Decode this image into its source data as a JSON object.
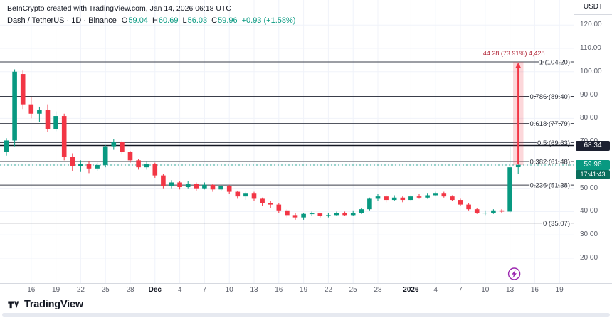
{
  "header": {
    "attribution": "BeInCrypto created with TradingView.com, Jan 14, 2026 06:18 UTC",
    "symbol": "Dash / TetherUS · 1D · Binance",
    "ohlc": {
      "o_label": "O",
      "o": "59.04",
      "h_label": "H",
      "h": "60.69",
      "l_label": "L",
      "l": "56.03",
      "c_label": "C",
      "c": "59.96",
      "change": "+0.93 (+1.58%)"
    }
  },
  "price_axis": {
    "currency": "USDT",
    "ticks": [
      {
        "value": 120,
        "label": "120.00"
      },
      {
        "value": 110,
        "label": "110.00"
      },
      {
        "value": 100,
        "label": "100.00"
      },
      {
        "value": 90,
        "label": "90.00"
      },
      {
        "value": 80,
        "label": "80.00"
      },
      {
        "value": 70,
        "label": "70.00"
      },
      {
        "value": 60,
        "label": "60.00"
      },
      {
        "value": 50,
        "label": "50.00"
      },
      {
        "value": 40,
        "label": "40.00"
      },
      {
        "value": 30,
        "label": "30.00"
      },
      {
        "value": 20,
        "label": "20.00"
      }
    ],
    "line_badge": "68.34",
    "last_price_label": "59.96",
    "countdown": "17:41:43"
  },
  "time_axis": {
    "ticks": [
      {
        "i": 3,
        "label": "16"
      },
      {
        "i": 6,
        "label": "19"
      },
      {
        "i": 9,
        "label": "22"
      },
      {
        "i": 12,
        "label": "25"
      },
      {
        "i": 15,
        "label": "28"
      },
      {
        "i": 18,
        "label": "Dec",
        "bold": true
      },
      {
        "i": 21,
        "label": "4"
      },
      {
        "i": 24,
        "label": "7"
      },
      {
        "i": 27,
        "label": "10"
      },
      {
        "i": 30,
        "label": "13"
      },
      {
        "i": 33,
        "label": "16"
      },
      {
        "i": 36,
        "label": "19"
      },
      {
        "i": 39,
        "label": "22"
      },
      {
        "i": 42,
        "label": "25"
      },
      {
        "i": 45,
        "label": "28"
      },
      {
        "i": 49,
        "label": "2026",
        "bold": true
      },
      {
        "i": 52,
        "label": "4"
      },
      {
        "i": 55,
        "label": "7"
      },
      {
        "i": 58,
        "label": "10"
      },
      {
        "i": 61,
        "label": "13"
      },
      {
        "i": 64,
        "label": "16"
      },
      {
        "i": 67,
        "label": "19"
      }
    ]
  },
  "footer": {
    "brand": "TradingView"
  },
  "chart_data": {
    "type": "candlestick",
    "title": "Dash / TetherUS · 1D · Binance",
    "ylabel": "Price (USDT)",
    "y_axis_ticks": [
      120,
      110,
      100,
      90,
      80,
      70,
      60,
      50,
      40,
      30,
      20
    ],
    "candles": [
      [
        "Nov 13",
        65.5,
        71.5,
        64.0,
        70.5
      ],
      [
        "Nov 14",
        70.5,
        101.0,
        68.0,
        100.0
      ],
      [
        "Nov 15",
        99.0,
        100.5,
        84.0,
        86.0
      ],
      [
        "Nov 16",
        86.0,
        89.0,
        80.0,
        82.0
      ],
      [
        "Nov 17",
        82.0,
        85.0,
        78.5,
        83.5
      ],
      [
        "Nov 18",
        83.5,
        86.0,
        74.0,
        75.5
      ],
      [
        "Nov 19",
        75.5,
        83.0,
        74.5,
        81.0
      ],
      [
        "Nov 20",
        81.0,
        82.0,
        62.0,
        63.5
      ],
      [
        "Nov 21",
        63.5,
        65.0,
        57.5,
        59.5
      ],
      [
        "Nov 22",
        59.5,
        62.0,
        57.0,
        60.5
      ],
      [
        "Nov 23",
        60.5,
        61.5,
        56.5,
        58.5
      ],
      [
        "Nov 24",
        58.5,
        61.0,
        57.5,
        60.0
      ],
      [
        "Nov 25",
        60.0,
        68.5,
        59.0,
        68.0
      ],
      [
        "Nov 26",
        68.0,
        71.0,
        66.5,
        70.0
      ],
      [
        "Nov 27",
        70.0,
        70.5,
        64.5,
        65.5
      ],
      [
        "Nov 28",
        65.5,
        66.0,
        61.0,
        62.0
      ],
      [
        "Nov 29",
        62.0,
        62.5,
        58.0,
        59.0
      ],
      [
        "Nov 30",
        59.0,
        61.5,
        58.0,
        60.5
      ],
      [
        "Dec 1",
        60.5,
        61.0,
        54.5,
        55.5
      ],
      [
        "Dec 2",
        55.5,
        56.0,
        50.0,
        51.0
      ],
      [
        "Dec 3",
        51.0,
        53.5,
        50.0,
        52.5
      ],
      [
        "Dec 4",
        52.5,
        53.0,
        49.5,
        50.5
      ],
      [
        "Dec 5",
        50.5,
        53.0,
        50.0,
        52.0
      ],
      [
        "Dec 6",
        52.0,
        52.5,
        49.0,
        50.0
      ],
      [
        "Dec 7",
        50.0,
        52.5,
        49.5,
        51.5
      ],
      [
        "Dec 8",
        51.5,
        52.0,
        48.5,
        49.5
      ],
      [
        "Dec 9",
        49.5,
        51.5,
        49.0,
        51.0
      ],
      [
        "Dec 10",
        51.0,
        51.5,
        47.5,
        48.5
      ],
      [
        "Dec 11",
        48.5,
        49.0,
        45.5,
        46.5
      ],
      [
        "Dec 12",
        46.5,
        48.5,
        45.0,
        48.0
      ],
      [
        "Dec 13",
        48.0,
        48.5,
        44.5,
        45.5
      ],
      [
        "Dec 14",
        45.5,
        46.0,
        42.5,
        43.5
      ],
      [
        "Dec 15",
        43.5,
        44.5,
        41.5,
        43.0
      ],
      [
        "Dec 16",
        43.0,
        43.5,
        39.5,
        40.5
      ],
      [
        "Dec 17",
        40.5,
        41.0,
        37.5,
        38.5
      ],
      [
        "Dec 18",
        38.5,
        39.5,
        36.5,
        37.5
      ],
      [
        "Dec 19",
        37.5,
        39.5,
        36.5,
        39.0
      ],
      [
        "Dec 20",
        39.0,
        40.0,
        38.0,
        39.2
      ],
      [
        "Dec 21",
        39.2,
        39.5,
        37.5,
        38.0
      ],
      [
        "Dec 22",
        38.0,
        39.5,
        37.5,
        38.5
      ],
      [
        "Dec 23",
        38.5,
        40.0,
        38.0,
        39.5
      ],
      [
        "Dec 24",
        39.5,
        40.0,
        38.0,
        38.5
      ],
      [
        "Dec 25",
        38.5,
        40.5,
        38.0,
        39.5
      ],
      [
        "Dec 26",
        39.5,
        41.5,
        39.0,
        41.0
      ],
      [
        "Dec 27",
        41.0,
        46.0,
        40.5,
        45.5
      ],
      [
        "Dec 28",
        45.5,
        47.5,
        44.5,
        46.5
      ],
      [
        "Dec 29",
        46.5,
        47.0,
        44.0,
        45.0
      ],
      [
        "Dec 30",
        45.0,
        47.0,
        44.5,
        46.0
      ],
      [
        "Dec 31",
        46.0,
        46.5,
        44.0,
        45.0
      ],
      [
        "Jan 1",
        45.0,
        47.0,
        44.5,
        46.5
      ],
      [
        "Jan 2",
        46.5,
        47.5,
        45.5,
        46.0
      ],
      [
        "Jan 3",
        46.0,
        48.0,
        45.5,
        47.0
      ],
      [
        "Jan 4",
        47.0,
        48.5,
        46.5,
        48.0
      ],
      [
        "Jan 5",
        48.0,
        48.5,
        46.0,
        46.5
      ],
      [
        "Jan 6",
        46.5,
        47.0,
        44.5,
        45.0
      ],
      [
        "Jan 7",
        45.0,
        45.5,
        42.5,
        43.0
      ],
      [
        "Jan 8",
        43.0,
        43.5,
        40.5,
        41.0
      ],
      [
        "Jan 9",
        41.0,
        41.5,
        39.0,
        39.5
      ],
      [
        "Jan 10",
        39.5,
        40.5,
        38.5,
        39.5
      ],
      [
        "Jan 11",
        39.5,
        41.0,
        39.0,
        40.5
      ],
      [
        "Jan 12",
        40.5,
        41.0,
        39.5,
        40.0
      ],
      [
        "Jan 13",
        40.0,
        68.0,
        39.5,
        59.0
      ],
      [
        "Jan 14",
        59.04,
        60.69,
        56.03,
        59.96
      ]
    ],
    "fib_levels": [
      {
        "ratio": "1",
        "price": 104.2,
        "label": "1 (104.20)"
      },
      {
        "ratio": "0.786",
        "price": 89.4,
        "label": "0.786 (89.40)"
      },
      {
        "ratio": "0.618",
        "price": 77.79,
        "label": "0.618 (77.79)"
      },
      {
        "ratio": "0.5",
        "price": 69.63,
        "label": "0.5 (69.63)"
      },
      {
        "ratio": "0.382",
        "price": 61.48,
        "label": "0.382 (61.48)"
      },
      {
        "ratio": "0.236",
        "price": 51.38,
        "label": "0.236 (51.38)"
      },
      {
        "ratio": "0",
        "price": 35.07,
        "label": "0 (35.07)"
      }
    ],
    "horizontal_line": {
      "price": 68.34
    },
    "last_price": 59.96,
    "projection": {
      "label": "44.28 (73.91%) 4,428",
      "from_price": 59.96,
      "to_price": 104.2
    },
    "event_marker": {
      "index": 61,
      "type": "lightning"
    },
    "colors": {
      "up": "#089981",
      "down": "#f23645",
      "grid": "#f0f3fa",
      "fib_line": "#3a3e4a",
      "fib_label": "#2a2e39",
      "price_line": "#131722",
      "last_price_line": "#089981",
      "band_fill": "rgba(242,54,69,0.20)",
      "projection_text": "#b02436",
      "event": "#9c27b0"
    }
  }
}
